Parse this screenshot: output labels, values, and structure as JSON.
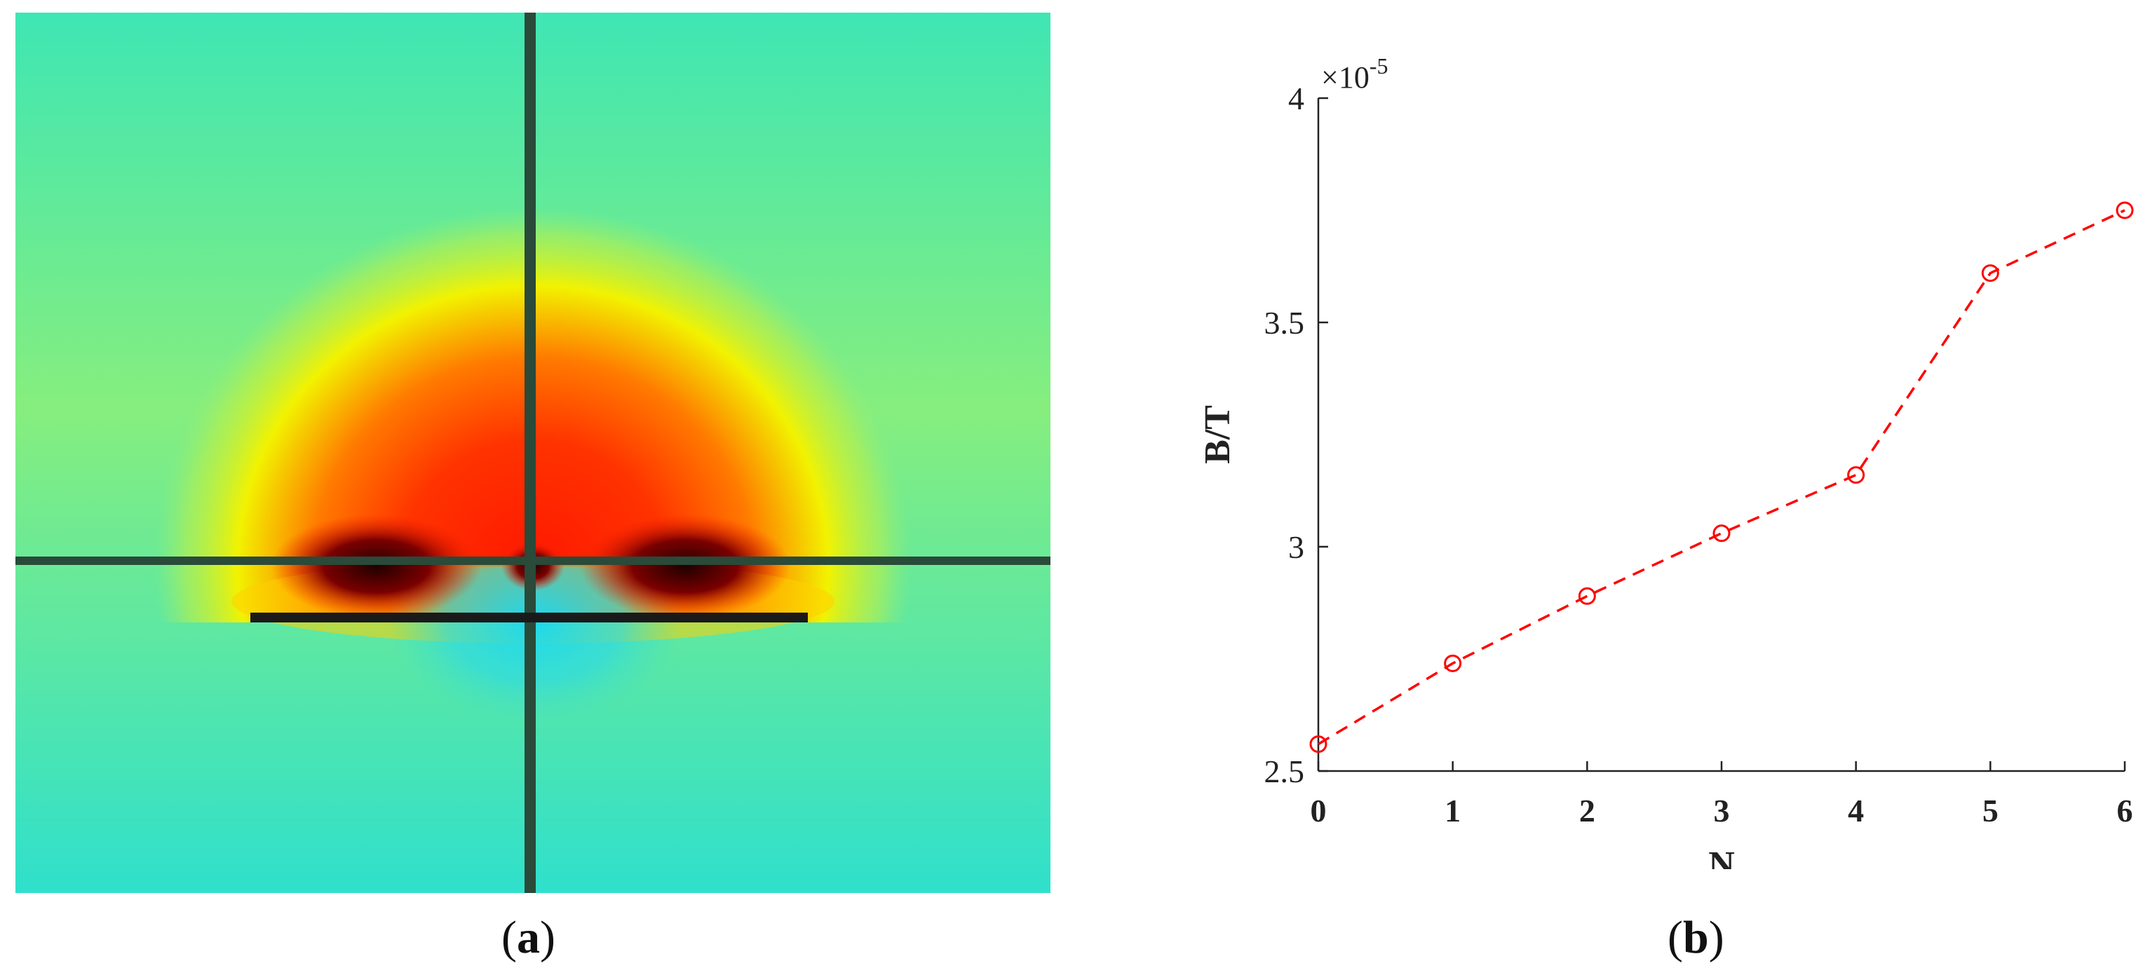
{
  "panels": {
    "a": {
      "label_open": "(",
      "label_letter": "a",
      "label_close": ")"
    },
    "b": {
      "label_open": "(",
      "label_letter": "b",
      "label_close": ")"
    }
  },
  "heatmap": {
    "colors": {
      "background_top": "#3fe6b4",
      "background_bottom": "#2fe0cc",
      "hot_core": "#ff1800",
      "orange": "#ff7a00",
      "yellow": "#f2f200",
      "cold": "#1ad9f0",
      "line": "#2a4a3a",
      "conductor": "#1a1a1a"
    }
  },
  "chart_data": {
    "type": "line",
    "x": [
      0,
      1,
      2,
      3,
      4,
      5,
      6
    ],
    "series": [
      {
        "values": [
          2.56e-05,
          2.74e-05,
          2.89e-05,
          3.03e-05,
          3.16e-05,
          3.61e-05,
          3.75e-05
        ],
        "color": "#ff0000",
        "style": "dashed",
        "marker": "circle"
      }
    ],
    "xlabel": "N",
    "ylabel": "B/T",
    "xlim": [
      0,
      6
    ],
    "ylim": [
      2.5e-05,
      4e-05
    ],
    "xticks": [
      "0",
      "1",
      "2",
      "3",
      "4",
      "5",
      "6"
    ],
    "yticks": [
      "2.5",
      "3",
      "3.5",
      "4"
    ],
    "y_tick_values": [
      2.5e-05,
      3e-05,
      3.5e-05,
      4e-05
    ],
    "y_multiplier_base": "×10",
    "y_multiplier_exponent": "-5",
    "grid": false
  }
}
